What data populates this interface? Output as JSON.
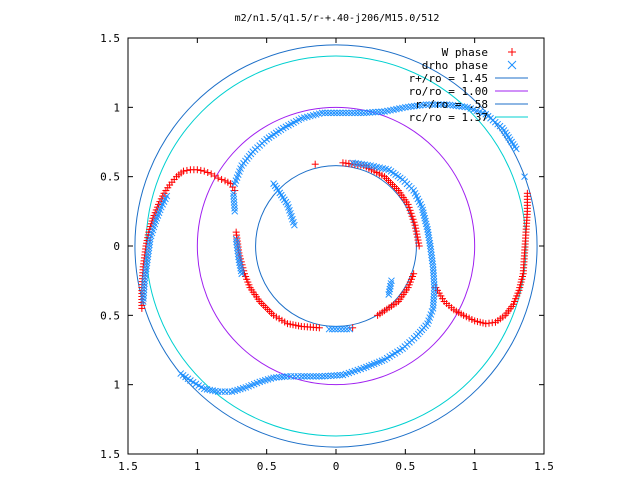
{
  "chart_data": {
    "type": "scatter",
    "title": "m2/n1.5/q1.5/r-+.40-j206/M15.0/512",
    "xlabel": "",
    "ylabel": "",
    "xlim": [
      -1.5,
      1.5
    ],
    "ylim": [
      -1.5,
      1.5
    ],
    "x_ticks": [
      -1.5,
      -1,
      -0.5,
      0,
      0.5,
      1,
      1.5
    ],
    "y_ticks": [
      -1.5,
      -1,
      -0.5,
      0,
      0.5,
      1,
      1.5
    ],
    "x_tick_labels": [
      "1.5",
      "1",
      "0.5",
      "0",
      "0.5",
      "1",
      "1.5"
    ],
    "y_tick_labels": [
      "1.5",
      "1",
      "0.5",
      "0",
      "0.5",
      "1",
      "1.5"
    ],
    "legend_position": "top-right",
    "grid": false,
    "series": [
      {
        "name": "W phase",
        "marker": "plus",
        "color": "#ff0000",
        "points": [
          [
            -1.4,
            -0.45
          ],
          [
            -1.4,
            -0.3
          ],
          [
            -1.39,
            -0.15
          ],
          [
            -1.37,
            0.0
          ],
          [
            -1.35,
            0.1
          ],
          [
            -1.32,
            0.2
          ],
          [
            -1.28,
            0.3
          ],
          [
            -1.24,
            0.38
          ],
          [
            -1.2,
            0.44
          ],
          [
            -1.15,
            0.5
          ],
          [
            -1.1,
            0.54
          ],
          [
            -1.05,
            0.55
          ],
          [
            -1.0,
            0.55
          ],
          [
            -0.95,
            0.54
          ],
          [
            -0.9,
            0.52
          ],
          [
            -0.85,
            0.49
          ],
          [
            -0.8,
            0.47
          ],
          [
            -0.76,
            0.45
          ],
          [
            -0.73,
            0.4
          ],
          [
            -0.72,
            0.1
          ],
          [
            -0.7,
            -0.05
          ],
          [
            -0.66,
            -0.2
          ],
          [
            -0.62,
            -0.3
          ],
          [
            -0.55,
            -0.4
          ],
          [
            -0.45,
            -0.5
          ],
          [
            -0.35,
            -0.56
          ],
          [
            -0.25,
            -0.58
          ],
          [
            -0.12,
            -0.59
          ],
          [
            0.12,
            -0.59
          ],
          [
            0.3,
            -0.5
          ],
          [
            0.45,
            -0.4
          ],
          [
            0.52,
            -0.3
          ],
          [
            0.56,
            -0.2
          ],
          [
            -0.15,
            0.59
          ],
          [
            0.05,
            0.6
          ],
          [
            0.2,
            0.58
          ],
          [
            0.35,
            0.5
          ],
          [
            0.45,
            0.4
          ],
          [
            0.52,
            0.3
          ],
          [
            0.57,
            0.15
          ],
          [
            0.6,
            0.0
          ],
          [
            0.72,
            -0.3
          ],
          [
            0.78,
            -0.4
          ],
          [
            0.85,
            -0.46
          ],
          [
            0.92,
            -0.5
          ],
          [
            1.0,
            -0.54
          ],
          [
            1.08,
            -0.56
          ],
          [
            1.15,
            -0.55
          ],
          [
            1.22,
            -0.5
          ],
          [
            1.28,
            -0.42
          ],
          [
            1.32,
            -0.32
          ],
          [
            1.35,
            -0.2
          ],
          [
            1.36,
            -0.05
          ],
          [
            1.37,
            0.1
          ],
          [
            1.38,
            0.25
          ],
          [
            1.38,
            0.38
          ]
        ]
      },
      {
        "name": "drho phase",
        "marker": "cross",
        "color": "#1e90ff",
        "points": [
          [
            -1.39,
            -0.4
          ],
          [
            -1.38,
            -0.25
          ],
          [
            -1.36,
            -0.1
          ],
          [
            -1.34,
            0.05
          ],
          [
            -1.3,
            0.18
          ],
          [
            -1.26,
            0.28
          ],
          [
            -1.22,
            0.36
          ],
          [
            -0.74,
            0.38
          ],
          [
            -0.73,
            0.25
          ],
          [
            -0.72,
            0.05
          ],
          [
            -0.7,
            -0.1
          ],
          [
            -0.68,
            -0.2
          ],
          [
            -0.45,
            0.45
          ],
          [
            -0.35,
            0.3
          ],
          [
            -0.3,
            0.15
          ],
          [
            -1.12,
            -0.92
          ],
          [
            -1.05,
            -0.97
          ],
          [
            -0.95,
            -1.03
          ],
          [
            -0.85,
            -1.05
          ],
          [
            -0.75,
            -1.05
          ],
          [
            -0.65,
            -1.02
          ],
          [
            -0.55,
            -0.98
          ],
          [
            -0.45,
            -0.95
          ],
          [
            -0.35,
            -0.94
          ],
          [
            -0.25,
            -0.94
          ],
          [
            -0.1,
            -0.94
          ],
          [
            0.05,
            -0.93
          ],
          [
            0.2,
            -0.88
          ],
          [
            0.35,
            -0.82
          ],
          [
            0.48,
            -0.74
          ],
          [
            0.58,
            -0.65
          ],
          [
            0.66,
            -0.56
          ],
          [
            0.7,
            -0.45
          ],
          [
            0.71,
            -0.3
          ],
          [
            0.7,
            -0.15
          ],
          [
            0.68,
            0.0
          ],
          [
            0.66,
            0.12
          ],
          [
            0.62,
            0.28
          ],
          [
            0.56,
            0.4
          ],
          [
            0.48,
            0.48
          ],
          [
            0.38,
            0.55
          ],
          [
            0.25,
            0.58
          ],
          [
            0.12,
            0.6
          ],
          [
            0.4,
            -0.25
          ],
          [
            0.38,
            -0.35
          ],
          [
            0.1,
            -0.6
          ],
          [
            -0.05,
            -0.6
          ],
          [
            -0.73,
            0.45
          ],
          [
            -0.68,
            0.58
          ],
          [
            -0.6,
            0.68
          ],
          [
            -0.5,
            0.77
          ],
          [
            -0.38,
            0.85
          ],
          [
            -0.25,
            0.92
          ],
          [
            -0.1,
            0.96
          ],
          [
            0.05,
            0.96
          ],
          [
            0.2,
            0.96
          ],
          [
            0.35,
            0.97
          ],
          [
            0.5,
            1.0
          ],
          [
            0.65,
            1.02
          ],
          [
            0.8,
            1.02
          ],
          [
            0.95,
            1.0
          ],
          [
            1.08,
            0.95
          ],
          [
            1.2,
            0.85
          ],
          [
            1.3,
            0.7
          ],
          [
            1.36,
            0.5
          ]
        ]
      },
      {
        "name": "r+/ro = 1.45",
        "type": "circle",
        "radius": 1.45,
        "color": "#1c6fc8"
      },
      {
        "name": "ro/ro = 1.00",
        "type": "circle",
        "radius": 1.0,
        "color": "#a020f0"
      },
      {
        "name": "r-/ro = .58",
        "type": "circle",
        "radius": 0.58,
        "color": "#1c6fc8"
      },
      {
        "name": "rc/ro = 1.37",
        "type": "circle",
        "radius": 1.37,
        "color": "#00d0d0"
      }
    ],
    "legend_labels": [
      "W phase",
      "drho phase",
      "r+/ro = 1.45",
      "ro/ro = 1.00",
      "r-/ro = .58",
      "rc/ro = 1.37"
    ]
  }
}
